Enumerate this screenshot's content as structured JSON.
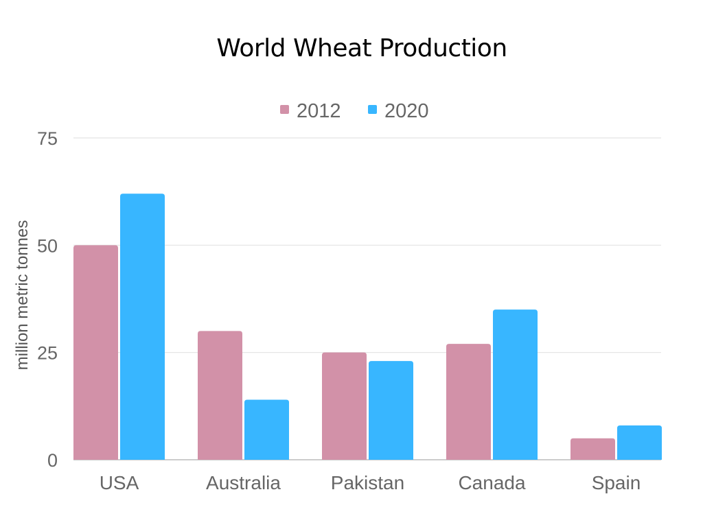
{
  "chart_data": {
    "type": "bar",
    "title": "World Wheat Production",
    "xlabel": "",
    "ylabel": "million metric tonnes",
    "categories": [
      "USA",
      "Australia",
      "Pakistan",
      "Canada",
      "Spain"
    ],
    "series": [
      {
        "name": "2012",
        "values": [
          50,
          30,
          25,
          27,
          5
        ],
        "color": "#d291a8"
      },
      {
        "name": "2020",
        "values": [
          62,
          14,
          23,
          35,
          8
        ],
        "color": "#38b6ff"
      }
    ],
    "ylim": [
      0,
      75
    ],
    "yticks": [
      "0",
      "25",
      "50",
      "75"
    ],
    "grid": true,
    "legend_position": "top-center"
  }
}
